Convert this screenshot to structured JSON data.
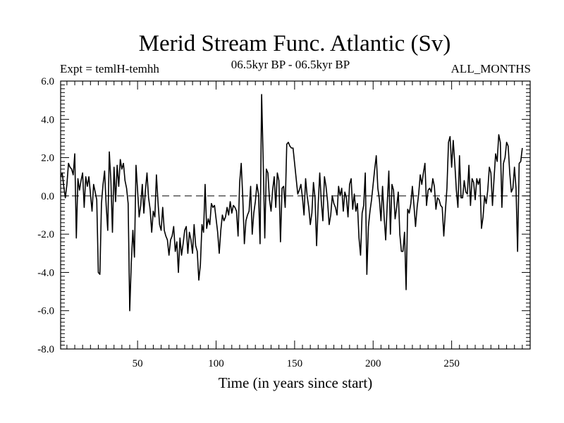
{
  "chart_data": {
    "type": "line",
    "title": "Merid Stream Func. Atlantic (Sv)",
    "subtitle_left": "Expt = temlH-temhh",
    "subtitle_center": "06.5kyr BP - 06.5kyr BP",
    "subtitle_right": "ALL_MONTHS",
    "xlabel": "Time (in years since start)",
    "ylabel": "",
    "xlim": [
      1,
      300
    ],
    "ylim": [
      -8.0,
      6.0
    ],
    "x_ticks": [
      50,
      100,
      150,
      200,
      250
    ],
    "x_tick_labels": [
      "50",
      "100",
      "150",
      "200",
      "250"
    ],
    "y_ticks": [
      6.0,
      4.0,
      2.0,
      0.0,
      -2.0,
      -4.0,
      -6.0,
      -8.0
    ],
    "y_tick_labels": [
      "6.0",
      "4.0",
      "2.0",
      "0.0",
      "-2.0",
      "-4.0",
      "-6.0",
      "-8.0"
    ],
    "reference_line": 0.0,
    "x_start": 1,
    "x_step": 1,
    "series": [
      {
        "name": "Merid Stream Func. Atlantic",
        "color": "#000000",
        "values": [
          1.0,
          1.2,
          0.5,
          -0.1,
          0.6,
          1.7,
          1.5,
          1.4,
          1.1,
          2.2,
          -2.2,
          0.9,
          0.3,
          0.8,
          1.2,
          -0.6,
          1.0,
          0.5,
          1.0,
          0.1,
          -0.8,
          0.6,
          0.2,
          -0.2,
          -4.0,
          -4.1,
          -0.4,
          0.6,
          1.3,
          -0.5,
          -1.8,
          2.3,
          0.8,
          -1.9,
          1.5,
          -0.3,
          1.6,
          0.5,
          1.9,
          1.4,
          1.7,
          0.8,
          0.4,
          -0.4,
          -6.0,
          -3.5,
          -1.8,
          -3.2,
          1.6,
          0.3,
          -1.1,
          -0.5,
          0.6,
          -0.9,
          0.3,
          1.2,
          -0.1,
          -0.7,
          -1.9,
          -0.8,
          -1.1,
          1.1,
          -0.3,
          -1.5,
          -1.8,
          -0.6,
          -1.8,
          -2.1,
          -2.3,
          -3.1,
          -2.3,
          -2.1,
          -1.6,
          -2.9,
          -2.4,
          -4.0,
          -2.2,
          -3.1,
          -2.5,
          -1.8,
          -1.6,
          -3.0,
          -1.9,
          -2.3,
          -3.0,
          -1.5,
          -2.6,
          -2.9,
          -4.4,
          -3.6,
          -1.5,
          -1.9,
          0.6,
          -1.7,
          -1.2,
          -1.5,
          -0.4,
          -0.6,
          -0.5,
          -1.2,
          -1.9,
          -3.0,
          -1.8,
          -1.0,
          -1.3,
          -1.1,
          -0.6,
          -1.0,
          -0.3,
          -0.9,
          -0.5,
          -0.6,
          -0.8,
          -2.1,
          0.7,
          1.7,
          -0.1,
          -2.5,
          -1.3,
          -1.0,
          -0.8,
          0.5,
          -2.0,
          -0.9,
          -0.3,
          0.6,
          0.1,
          -2.5,
          5.3,
          1.8,
          -2.2,
          1.4,
          1.2,
          -0.2,
          -0.8,
          0.3,
          1.0,
          -0.6,
          1.2,
          0.8,
          -2.4,
          0.4,
          0.5,
          -0.6,
          2.7,
          2.8,
          2.6,
          2.5,
          2.5,
          1.7,
          0.9,
          0.1,
          0.3,
          0.6,
          -0.1,
          -1.0,
          0.9,
          0.0,
          -0.6,
          -1.5,
          -0.9,
          0.7,
          -0.1,
          -2.6,
          -0.5,
          1.2,
          -0.3,
          -1.3,
          1.0,
          0.5,
          -0.3,
          -1.5,
          -1.0,
          0.0,
          -0.4,
          -0.6,
          -1.0,
          0.5,
          0.0,
          0.4,
          -0.8,
          0.2,
          -0.1,
          -1.1,
          0.6,
          0.9,
          -0.7,
          0.1,
          -0.8,
          -0.4,
          -2.2,
          -3.1,
          -0.9,
          -0.5,
          1.2,
          -4.1,
          -1.6,
          -0.8,
          -0.2,
          0.6,
          1.4,
          2.1,
          0.4,
          -0.2,
          -1.3,
          0.5,
          -1.1,
          -2.3,
          -0.4,
          1.3,
          -2.0,
          0.6,
          0.3,
          -1.2,
          -0.6,
          0.2,
          -2.0,
          -2.9,
          -2.9,
          -1.9,
          -4.9,
          -0.7,
          -0.9,
          -0.4,
          0.5,
          -0.5,
          -1.6,
          -0.6,
          0.1,
          1.1,
          0.6,
          1.2,
          1.7,
          -0.5,
          0.3,
          0.4,
          0.2,
          0.9,
          0.5,
          -0.7,
          -0.1,
          -0.2,
          -0.5,
          -0.6,
          -2.1,
          -0.8,
          0.4,
          2.8,
          3.1,
          1.5,
          2.9,
          1.7,
          0.3,
          -0.6,
          2.1,
          -0.1,
          -0.1,
          0.8,
          0.2,
          0.1,
          1.6,
          -0.5,
          0.9,
          0.7,
          -0.2,
          0.9,
          0.6,
          0.9,
          -1.7,
          -1.1,
          0.0,
          -0.4,
          0.3,
          1.5,
          1.2,
          -0.5,
          0.9,
          2.2,
          1.8,
          3.2,
          2.8,
          -0.6,
          1.7,
          2.0,
          2.8,
          2.6,
          1.2,
          0.2,
          0.4,
          1.5,
          0.4,
          -2.9,
          1.7,
          1.8,
          2.5
        ]
      }
    ]
  }
}
